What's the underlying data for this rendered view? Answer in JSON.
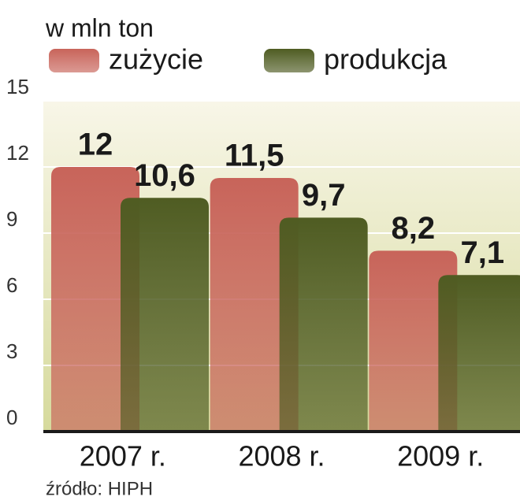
{
  "chart_data": {
    "type": "bar",
    "title": "w mln ton",
    "categories": [
      "2007 r.",
      "2008 r.",
      "2009 r."
    ],
    "series": [
      {
        "name": "zużycie",
        "color": "#c8645a",
        "values": [
          12,
          11.5,
          8.2
        ],
        "value_labels": [
          "12",
          "11,5",
          "8,2"
        ]
      },
      {
        "name": "produkcja",
        "color": "#4f5c22",
        "values": [
          10.6,
          9.7,
          7.1
        ],
        "value_labels": [
          "10,6",
          "9,7",
          "7,1"
        ]
      }
    ],
    "ylim": [
      0,
      15
    ],
    "yticks": [
      0,
      3,
      6,
      9,
      12,
      15
    ],
    "grid": true,
    "source": "źródło: HIPH"
  }
}
